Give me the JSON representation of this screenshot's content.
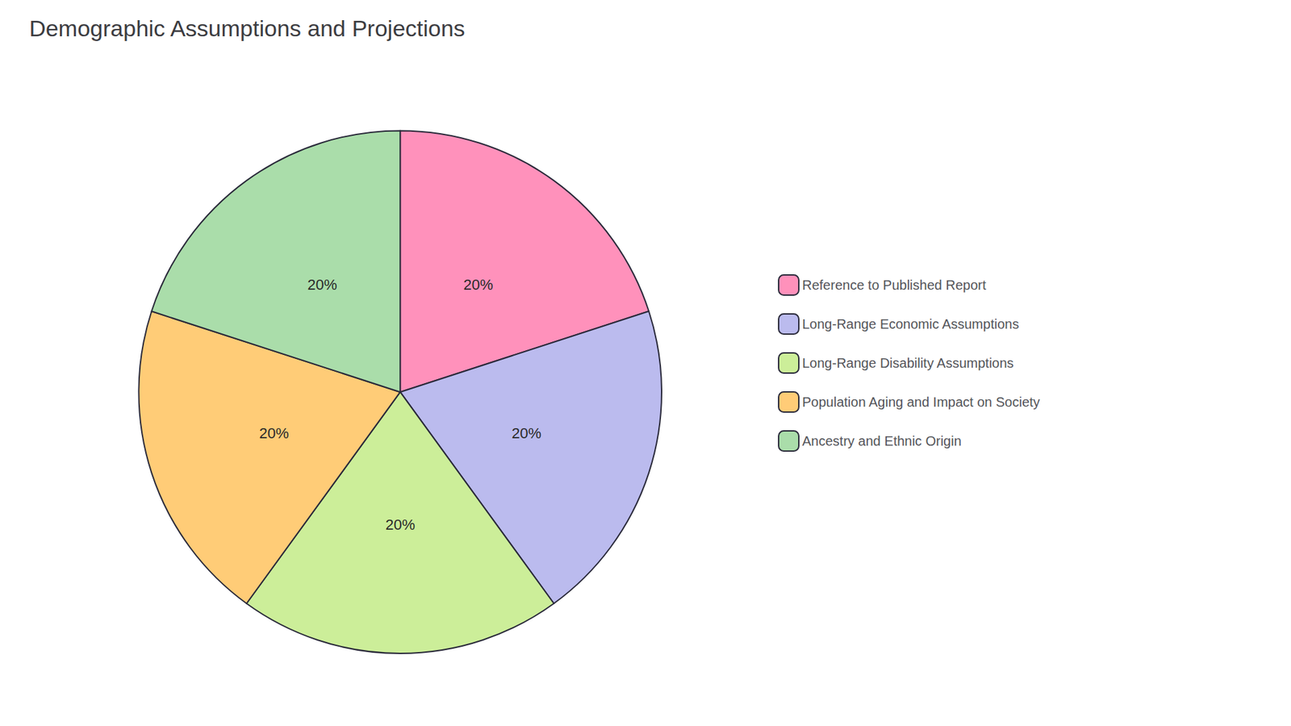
{
  "chart_data": {
    "type": "pie",
    "title": "Demographic Assumptions and Projections",
    "categories": [
      "Reference to Published Report",
      "Long-Range Economic Assumptions",
      "Long-Range Disability Assumptions",
      "Population Aging and Impact on Society",
      "Ancestry and Ethnic Origin"
    ],
    "values": [
      20,
      20,
      20,
      20,
      20
    ],
    "value_labels": [
      "20%",
      "20%",
      "20%",
      "20%",
      "20%"
    ],
    "colors": [
      "#FF91BB",
      "#BBBBEE",
      "#CCEE99",
      "#FFCC77",
      "#AADDAA"
    ],
    "data_labels": true,
    "legend": "right"
  }
}
